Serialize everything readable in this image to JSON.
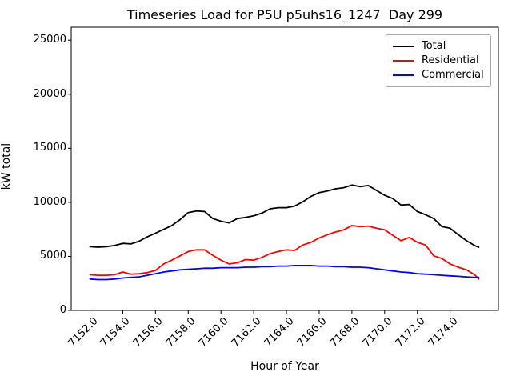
{
  "chart_data": {
    "type": "line",
    "title": "Timeseries Load for P5U p5uhs16_1247  Day 299",
    "xlabel": "Hour of Year",
    "ylabel": "kW total",
    "grid": false,
    "legend_position": "upper right",
    "xlim": [
      7150.85,
      7176.95
    ],
    "ylim": [
      0,
      26200
    ],
    "x_ticks": [
      7152,
      7154,
      7156,
      7158,
      7160,
      7162,
      7164,
      7166,
      7168,
      7170,
      7172,
      7174
    ],
    "x_tick_labels": [
      "7152.0",
      "7154.0",
      "7156.0",
      "7158.0",
      "7160.0",
      "7162.0",
      "7164.0",
      "7166.0",
      "7168.0",
      "7170.0",
      "7172.0",
      "7174.0"
    ],
    "y_ticks": [
      0,
      5000,
      10000,
      15000,
      20000,
      25000
    ],
    "y_tick_labels": [
      "0",
      "5000",
      "10000",
      "15000",
      "20000",
      "25000"
    ],
    "x": [
      7152.0,
      7152.5,
      7153.0,
      7153.5,
      7154.0,
      7154.5,
      7155.0,
      7155.5,
      7156.0,
      7156.5,
      7157.0,
      7157.5,
      7158.0,
      7158.5,
      7159.0,
      7159.5,
      7160.0,
      7160.5,
      7161.0,
      7161.5,
      7162.0,
      7162.5,
      7163.0,
      7163.5,
      7164.0,
      7164.5,
      7165.0,
      7165.5,
      7166.0,
      7166.5,
      7167.0,
      7167.5,
      7168.0,
      7168.5,
      7169.0,
      7169.5,
      7170.0,
      7170.5,
      7171.0,
      7171.5,
      7172.0,
      7172.5,
      7173.0,
      7173.5,
      7174.0,
      7174.5,
      7175.0,
      7175.5,
      7175.75
    ],
    "series": [
      {
        "name": "Total",
        "color": "#000000",
        "values": [
          5900,
          5850,
          5900,
          6000,
          6200,
          6150,
          6400,
          6800,
          7150,
          7500,
          7850,
          8400,
          9050,
          9200,
          9150,
          8500,
          8250,
          8100,
          8500,
          8600,
          8750,
          9000,
          9400,
          9500,
          9500,
          9650,
          10050,
          10550,
          10900,
          11050,
          11250,
          11350,
          11600,
          11450,
          11550,
          11100,
          10650,
          10350,
          9750,
          9800,
          9150,
          8850,
          8500,
          7750,
          7600,
          7000,
          6450,
          6000,
          5850
        ]
      },
      {
        "name": "Residential",
        "color": "#ff0000",
        "values": [
          3300,
          3250,
          3250,
          3300,
          3550,
          3350,
          3400,
          3500,
          3700,
          4300,
          4650,
          5050,
          5450,
          5600,
          5600,
          5100,
          4650,
          4300,
          4400,
          4700,
          4650,
          4900,
          5250,
          5450,
          5600,
          5550,
          6050,
          6300,
          6700,
          7000,
          7250,
          7450,
          7850,
          7750,
          7800,
          7600,
          7450,
          6950,
          6450,
          6750,
          6300,
          6050,
          5050,
          4800,
          4300,
          4000,
          3750,
          3300,
          2900
        ]
      },
      {
        "name": "Commercial",
        "color": "#0000ff",
        "values": [
          2900,
          2850,
          2850,
          2900,
          3000,
          3050,
          3100,
          3250,
          3400,
          3550,
          3650,
          3750,
          3800,
          3850,
          3900,
          3900,
          3950,
          3950,
          3950,
          4000,
          4000,
          4050,
          4050,
          4100,
          4100,
          4150,
          4150,
          4150,
          4100,
          4100,
          4050,
          4050,
          4000,
          4000,
          3950,
          3850,
          3750,
          3650,
          3550,
          3500,
          3400,
          3350,
          3300,
          3250,
          3200,
          3150,
          3100,
          3050,
          3050
        ]
      }
    ]
  }
}
